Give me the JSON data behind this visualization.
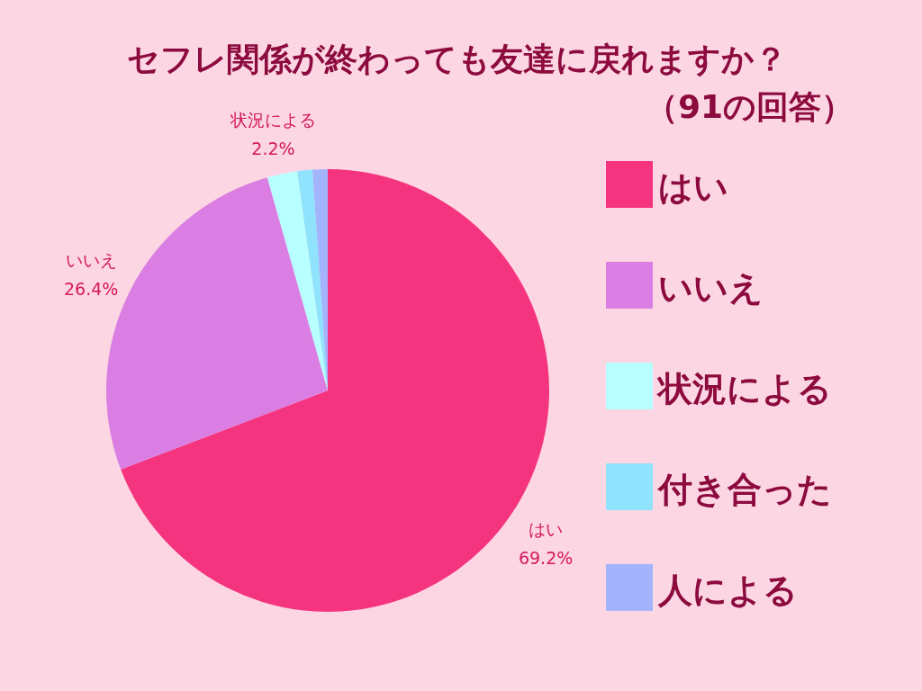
{
  "chart_data": {
    "type": "pie",
    "title": "セフレ関係が終わっても友達に戻れますか？",
    "subtitle": "（91の回答）",
    "categories": [
      "はい",
      "いいえ",
      "状況による",
      "付き合った",
      "人による"
    ],
    "values": [
      69.2,
      26.4,
      2.2,
      1.1,
      1.1
    ],
    "colors": [
      "#f5347f",
      "#db7ee3",
      "#b8ffff",
      "#8fe3fd",
      "#a3b4fd"
    ],
    "value_labels": [
      "69.2%",
      "26.4%",
      "2.2%",
      null,
      null
    ],
    "legend": "right"
  }
}
